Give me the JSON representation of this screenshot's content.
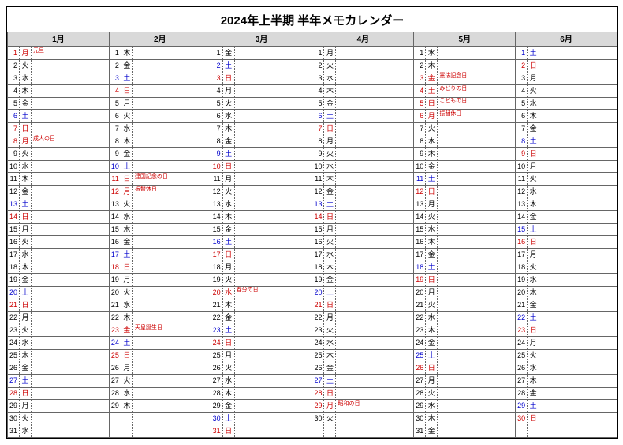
{
  "title": "2024年上半期 半年メモカレンダー",
  "months": [
    "1月",
    "2月",
    "3月",
    "4月",
    "5月",
    "6月"
  ],
  "colors": {
    "weekday": "#000000",
    "saturday": "#0000cc",
    "sunday": "#cc0000",
    "holiday_text": "#cc0000",
    "header_bg": "#d9d9d9",
    "border": "#666666"
  },
  "dow_labels": [
    "日",
    "月",
    "火",
    "水",
    "木",
    "金",
    "土"
  ],
  "start_dow": [
    1,
    4,
    5,
    1,
    3,
    6
  ],
  "days_in_month": [
    31,
    29,
    31,
    30,
    31,
    30
  ],
  "max_rows": 31,
  "holidays": {
    "0": {
      "1": "元旦",
      "8": "成人の日"
    },
    "1": {
      "11": "建国記念の日",
      "12": "振替休日",
      "23": "天皇誕生日"
    },
    "2": {
      "20": "春分の日"
    },
    "3": {
      "29": "昭和の日"
    },
    "4": {
      "3": "憲法記念日",
      "4": "みどりの日",
      "5": "こどもの日",
      "6": "振替休日"
    },
    "5": {}
  }
}
